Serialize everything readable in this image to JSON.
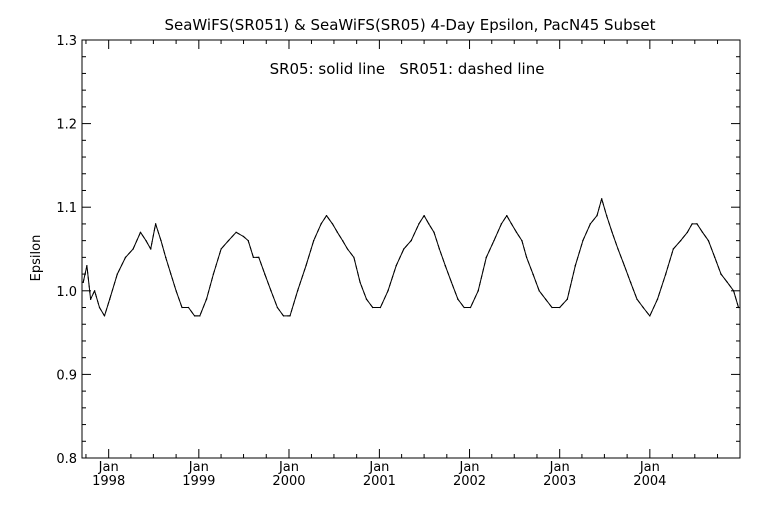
{
  "chart_data": {
    "type": "line",
    "title": "SeaWiFS(SR051) & SeaWiFS(SR05) 4-Day Epsilon, PacN45 Subset",
    "annotation": "SR05: solid line   SR051: dashed line",
    "xlabel": "",
    "ylabel": "Epsilon",
    "ylim": [
      0.8,
      1.3
    ],
    "yticks": [
      "0.8",
      "0.9",
      "1.0",
      "1.1",
      "1.2",
      "1.3"
    ],
    "xlim": [
      "1997-09-15",
      "2004-12-31"
    ],
    "xticks": [
      {
        "date": "1998-01-01",
        "month": "Jan",
        "year": "1998"
      },
      {
        "date": "1999-01-01",
        "month": "Jan",
        "year": "1999"
      },
      {
        "date": "2000-01-01",
        "month": "Jan",
        "year": "2000"
      },
      {
        "date": "2001-01-01",
        "month": "Jan",
        "year": "2001"
      },
      {
        "date": "2002-01-01",
        "month": "Jan",
        "year": "2002"
      },
      {
        "date": "2003-01-01",
        "month": "Jan",
        "year": "2003"
      },
      {
        "date": "2004-01-01",
        "month": "Jan",
        "year": "2004"
      }
    ],
    "grid": false,
    "legend": "none",
    "series": [
      {
        "name": "SR05",
        "style": "solid",
        "x": [
          "1997-09-20",
          "1997-10-05",
          "1997-10-20",
          "1997-11-05",
          "1997-11-25",
          "1997-12-15",
          "1998-01-05",
          "1998-02-05",
          "1998-03-10",
          "1998-04-10",
          "1998-05-10",
          "1998-06-01",
          "1998-06-20",
          "1998-07-10",
          "1998-08-01",
          "1998-08-20",
          "1998-09-10",
          "1998-10-01",
          "1998-10-25",
          "1998-11-20",
          "1998-12-15",
          "1999-01-05",
          "1999-02-01",
          "1999-03-01",
          "1999-04-01",
          "1999-05-01",
          "1999-06-01",
          "1999-07-01",
          "1999-07-20",
          "1999-08-10",
          "1999-09-01",
          "1999-09-25",
          "1999-10-20",
          "1999-11-15",
          "1999-12-10",
          "2000-01-05",
          "2000-02-05",
          "2000-03-10",
          "2000-04-10",
          "2000-05-10",
          "2000-06-01",
          "2000-06-25",
          "2000-07-15",
          "2000-08-05",
          "2000-08-25",
          "2000-09-20",
          "2000-10-15",
          "2000-11-10",
          "2000-12-05",
          "2001-01-05",
          "2001-02-05",
          "2001-03-10",
          "2001-04-10",
          "2001-05-10",
          "2001-06-10",
          "2001-07-01",
          "2001-07-20",
          "2001-08-10",
          "2001-09-01",
          "2001-09-25",
          "2001-10-20",
          "2001-11-15",
          "2001-12-10",
          "2002-01-05",
          "2002-02-05",
          "2002-03-10",
          "2002-04-10",
          "2002-05-10",
          "2002-06-01",
          "2002-06-20",
          "2002-07-10",
          "2002-08-01",
          "2002-08-20",
          "2002-09-15",
          "2002-10-10",
          "2002-11-05",
          "2002-12-01",
          "2003-01-01",
          "2003-02-01",
          "2003-03-05",
          "2003-04-05",
          "2003-05-05",
          "2003-06-01",
          "2003-06-20",
          "2003-07-10",
          "2003-08-01",
          "2003-08-25",
          "2003-09-20",
          "2003-10-15",
          "2003-11-10",
          "2003-12-05",
          "2004-01-01",
          "2004-02-01",
          "2004-03-05",
          "2004-04-05",
          "2004-05-05",
          "2004-06-01",
          "2004-06-20",
          "2004-07-10",
          "2004-08-01",
          "2004-08-25",
          "2004-09-20",
          "2004-10-15",
          "2004-11-10",
          "2004-12-05",
          "2004-12-25"
        ],
        "values": [
          1.01,
          1.03,
          0.99,
          1.0,
          0.98,
          0.97,
          0.99,
          1.02,
          1.04,
          1.05,
          1.07,
          1.06,
          1.05,
          1.08,
          1.06,
          1.04,
          1.02,
          1.0,
          0.98,
          0.98,
          0.97,
          0.97,
          0.99,
          1.02,
          1.05,
          1.06,
          1.07,
          1.065,
          1.06,
          1.04,
          1.04,
          1.02,
          1.0,
          0.98,
          0.97,
          0.97,
          1.0,
          1.03,
          1.06,
          1.08,
          1.09,
          1.08,
          1.07,
          1.06,
          1.05,
          1.04,
          1.01,
          0.99,
          0.98,
          0.98,
          1.0,
          1.03,
          1.05,
          1.06,
          1.08,
          1.09,
          1.08,
          1.07,
          1.05,
          1.03,
          1.01,
          0.99,
          0.98,
          0.98,
          1.0,
          1.04,
          1.06,
          1.08,
          1.09,
          1.08,
          1.07,
          1.06,
          1.04,
          1.02,
          1.0,
          0.99,
          0.98,
          0.98,
          0.99,
          1.03,
          1.06,
          1.08,
          1.09,
          1.11,
          1.09,
          1.07,
          1.05,
          1.03,
          1.01,
          0.99,
          0.98,
          0.97,
          0.99,
          1.02,
          1.05,
          1.06,
          1.07,
          1.08,
          1.08,
          1.07,
          1.06,
          1.04,
          1.02,
          1.01,
          1.0,
          0.98
        ]
      },
      {
        "name": "SR051",
        "style": "dashed",
        "x": [
          "1997-09-20",
          "1997-10-05",
          "1997-10-20",
          "1997-11-05",
          "1997-11-25",
          "1997-12-15",
          "1998-01-05",
          "1998-02-05",
          "1998-03-10",
          "1998-04-10",
          "1998-05-10",
          "1998-06-01",
          "1998-06-20",
          "1998-07-10",
          "1998-08-01",
          "1998-08-20",
          "1998-09-10",
          "1998-10-01",
          "1998-10-25",
          "1998-11-20",
          "1998-12-15",
          "1999-01-05",
          "1999-02-01",
          "1999-03-01",
          "1999-04-01",
          "1999-05-01",
          "1999-06-01",
          "1999-07-01",
          "1999-07-20",
          "1999-08-10",
          "1999-09-01",
          "1999-09-25",
          "1999-10-20",
          "1999-11-15",
          "1999-12-10",
          "2000-01-05",
          "2000-02-05",
          "2000-03-10",
          "2000-04-10",
          "2000-05-10",
          "2000-06-01",
          "2000-06-25",
          "2000-07-15",
          "2000-08-05",
          "2000-08-25",
          "2000-09-20",
          "2000-10-15",
          "2000-11-10",
          "2000-12-05",
          "2001-01-05",
          "2001-02-05",
          "2001-03-10",
          "2001-04-10",
          "2001-05-10",
          "2001-06-10",
          "2001-07-01",
          "2001-07-20",
          "2001-08-10",
          "2001-09-01",
          "2001-09-25",
          "2001-10-20",
          "2001-11-15",
          "2001-12-10",
          "2002-01-05",
          "2002-02-05",
          "2002-03-10",
          "2002-04-10",
          "2002-05-10",
          "2002-06-01",
          "2002-06-20",
          "2002-07-10",
          "2002-08-01",
          "2002-08-20",
          "2002-09-15",
          "2002-10-10",
          "2002-11-05",
          "2002-12-01",
          "2003-01-01",
          "2003-02-01",
          "2003-03-05",
          "2003-04-05",
          "2003-05-05",
          "2003-06-01",
          "2003-06-20",
          "2003-07-10",
          "2003-08-01",
          "2003-08-25",
          "2003-09-20",
          "2003-10-15",
          "2003-11-10",
          "2003-12-05",
          "2004-01-01",
          "2004-02-01",
          "2004-03-05",
          "2004-04-05",
          "2004-05-05",
          "2004-06-01",
          "2004-06-20",
          "2004-07-10",
          "2004-08-01",
          "2004-08-25",
          "2004-09-20",
          "2004-10-15",
          "2004-11-10",
          "2004-12-05",
          "2004-12-25"
        ],
        "values": [
          1.01,
          1.03,
          0.99,
          1.0,
          0.98,
          0.97,
          0.99,
          1.02,
          1.04,
          1.05,
          1.07,
          1.06,
          1.05,
          1.08,
          1.06,
          1.04,
          1.02,
          1.0,
          0.98,
          0.98,
          0.97,
          0.97,
          0.99,
          1.02,
          1.05,
          1.06,
          1.07,
          1.065,
          1.06,
          1.04,
          1.04,
          1.02,
          1.0,
          0.98,
          0.97,
          0.97,
          1.0,
          1.03,
          1.06,
          1.08,
          1.09,
          1.08,
          1.07,
          1.06,
          1.05,
          1.04,
          1.01,
          0.99,
          0.98,
          0.98,
          1.0,
          1.03,
          1.05,
          1.06,
          1.08,
          1.09,
          1.08,
          1.07,
          1.05,
          1.03,
          1.01,
          0.99,
          0.98,
          0.98,
          1.0,
          1.04,
          1.06,
          1.08,
          1.09,
          1.08,
          1.07,
          1.06,
          1.04,
          1.02,
          1.0,
          0.99,
          0.98,
          0.98,
          0.99,
          1.03,
          1.06,
          1.08,
          1.09,
          1.11,
          1.09,
          1.07,
          1.05,
          1.03,
          1.01,
          0.99,
          0.98,
          0.97,
          0.99,
          1.02,
          1.05,
          1.06,
          1.07,
          1.08,
          1.08,
          1.07,
          1.06,
          1.04,
          1.02,
          1.01,
          1.0,
          0.98
        ]
      }
    ]
  }
}
